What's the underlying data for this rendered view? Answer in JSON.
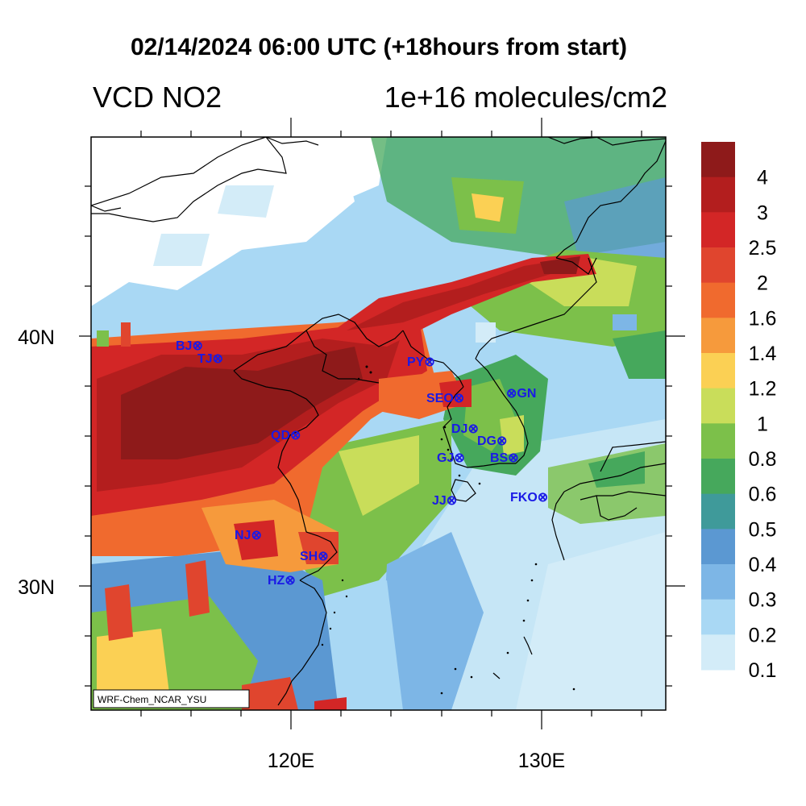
{
  "title": "02/14/2024 06:00 UTC (+18hours from start)",
  "left_string": "VCD NO2",
  "right_string": "1e+16 molecules/cm2",
  "credit": "WRF-Chem_NCAR_YSU",
  "lat_labels": [
    "40N",
    "30N"
  ],
  "lon_labels": [
    "120E",
    "130E"
  ],
  "colorbar": {
    "labels": [
      "4",
      "3",
      "2.5",
      "2",
      "1.6",
      "1.4",
      "1.2",
      "1",
      "0.8",
      "0.6",
      "0.5",
      "0.4",
      "0.3",
      "0.2",
      "0.1"
    ],
    "colors": [
      "#8e1a1a",
      "#b31e1e",
      "#d32626",
      "#e0452e",
      "#f06a2e",
      "#f69a3c",
      "#fbd054",
      "#c9dd5a",
      "#7cc04a",
      "#46a85c",
      "#3f9a9a",
      "#5b98d2",
      "#7db6e6",
      "#a9d8f4",
      "#d3ecf8"
    ]
  },
  "cities": [
    {
      "label": "BJ⊗"
    },
    {
      "label": "TJ⊗"
    },
    {
      "label": "PY⊗"
    },
    {
      "label": "SEO⊗"
    },
    {
      "label": "⊗GN"
    },
    {
      "label": "QD⊗"
    },
    {
      "label": "DJ⊗"
    },
    {
      "label": "DG⊗"
    },
    {
      "label": "GJ⊗"
    },
    {
      "label": "BS⊗"
    },
    {
      "label": "JJ⊗"
    },
    {
      "label": "FKO⊗"
    },
    {
      "label": "NJ⊗"
    },
    {
      "label": "SH⊗"
    },
    {
      "label": "HZ⊗"
    }
  ]
}
